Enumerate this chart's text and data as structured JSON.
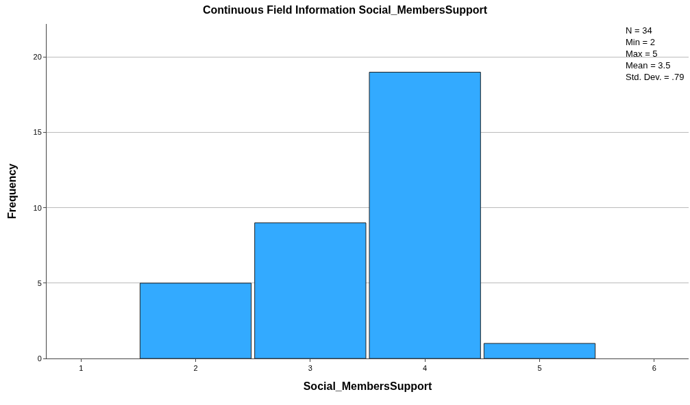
{
  "chart_data": {
    "type": "histogram",
    "title": "Continuous Field Information Social_MembersSupport",
    "xlabel": "Social_MembersSupport",
    "ylabel": "Frequency",
    "bins": [
      1.5,
      2.5,
      3.5,
      4.5,
      5.5
    ],
    "values": [
      5,
      9,
      19,
      1
    ],
    "color": "#33aaff",
    "xlim": [
      0.7,
      6.3
    ],
    "xticks": [
      1,
      2,
      3,
      4,
      5,
      6
    ],
    "ylim": [
      0,
      22.2
    ],
    "yticks": [
      0,
      5,
      10,
      15,
      20
    ],
    "grid": "y",
    "annotations": [
      "N = 34\nMin = 2\nMax = 5\nMean = 3.5\nStd. Dev. = .79"
    ]
  }
}
